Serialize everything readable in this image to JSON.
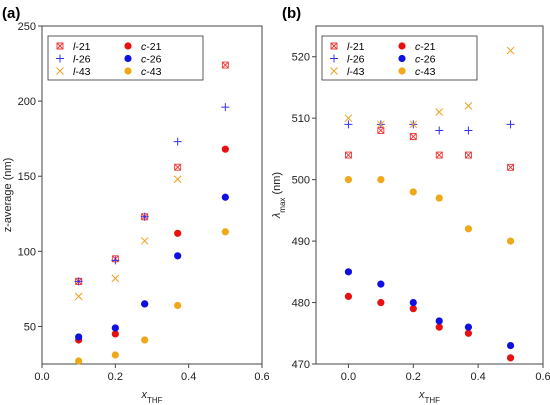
{
  "chart_data": [
    {
      "type": "scatter",
      "panel_label": "(a)",
      "ylabel": "z-average (nm)",
      "xlabel": {
        "base": "x",
        "sub": "THF"
      },
      "xlim": [
        -0.0,
        0.6
      ],
      "ylim": [
        25,
        250
      ],
      "xticks": [
        0.0,
        0.2,
        0.4,
        0.6
      ],
      "xtick_labels": [
        "0.0",
        "0.2",
        "0.4",
        "0.6"
      ],
      "yticks": [
        50,
        100,
        150,
        200,
        250
      ],
      "ytick_labels": [
        "50",
        "100",
        "150",
        "200",
        "250"
      ],
      "legend_position": "top-left",
      "series": [
        {
          "prefix": "l",
          "suffix": "-21",
          "marker": "square-x",
          "color": "#ee3333",
          "x": [
            0.1,
            0.2,
            0.28,
            0.37,
            0.5
          ],
          "y": [
            80,
            95,
            123,
            156,
            224
          ]
        },
        {
          "prefix": "l",
          "suffix": "-26",
          "marker": "plus",
          "color": "#3333ee",
          "x": [
            0.1,
            0.2,
            0.28,
            0.37,
            0.5
          ],
          "y": [
            80,
            94,
            123,
            173,
            196
          ]
        },
        {
          "prefix": "l",
          "suffix": "-43",
          "marker": "x",
          "color": "#f0a020",
          "x": [
            0.1,
            0.2,
            0.28,
            0.37
          ],
          "y": [
            70,
            82,
            107,
            148
          ]
        },
        {
          "prefix": "c",
          "suffix": "-21",
          "marker": "circle",
          "color": "#e81010",
          "x": [
            0.1,
            0.2,
            0.28,
            0.37,
            0.5
          ],
          "y": [
            41,
            45,
            65,
            112,
            168
          ]
        },
        {
          "prefix": "c",
          "suffix": "-26",
          "marker": "circle",
          "color": "#1010e0",
          "x": [
            0.1,
            0.2,
            0.28,
            0.37,
            0.5
          ],
          "y": [
            43,
            49,
            65,
            97,
            136
          ]
        },
        {
          "prefix": "c",
          "suffix": "-43",
          "marker": "circle",
          "color": "#f0a818",
          "x": [
            0.1,
            0.2,
            0.28,
            0.37,
            0.5
          ],
          "y": [
            27,
            31,
            41,
            64,
            113
          ]
        }
      ]
    },
    {
      "type": "scatter",
      "panel_label": "(b)",
      "ylabel": {
        "base": "λ",
        "sub": "max",
        "rest": " (nm)"
      },
      "xlabel": {
        "base": "x",
        "sub": "THF"
      },
      "xlim": [
        -0.1,
        0.6
      ],
      "ylim": [
        470,
        525
      ],
      "xticks": [
        0.0,
        0.2,
        0.4,
        0.6
      ],
      "xtick_labels": [
        "0.0",
        "0.2",
        "0.4",
        "0.6"
      ],
      "yticks": [
        470,
        480,
        490,
        500,
        510,
        520
      ],
      "ytick_labels": [
        "470",
        "480",
        "490",
        "500",
        "510",
        "520"
      ],
      "legend_position": "top-left",
      "series": [
        {
          "prefix": "l",
          "suffix": "-21",
          "marker": "square-x",
          "color": "#ee3333",
          "x": [
            0.0,
            0.1,
            0.2,
            0.28,
            0.37,
            0.5
          ],
          "y": [
            504,
            508,
            507,
            504,
            504,
            502
          ]
        },
        {
          "prefix": "l",
          "suffix": "-26",
          "marker": "plus",
          "color": "#3333ee",
          "x": [
            0.0,
            0.1,
            0.2,
            0.28,
            0.37,
            0.5
          ],
          "y": [
            509,
            509,
            509,
            508,
            508,
            509
          ]
        },
        {
          "prefix": "l",
          "suffix": "-43",
          "marker": "x",
          "color": "#f0a020",
          "x": [
            0.0,
            0.1,
            0.2,
            0.28,
            0.37,
            0.5
          ],
          "y": [
            510,
            509,
            509,
            511,
            512,
            521
          ]
        },
        {
          "prefix": "c",
          "suffix": "-21",
          "marker": "circle",
          "color": "#e81010",
          "x": [
            0.0,
            0.1,
            0.2,
            0.28,
            0.37,
            0.5
          ],
          "y": [
            481,
            480,
            479,
            476,
            475,
            471
          ]
        },
        {
          "prefix": "c",
          "suffix": "-26",
          "marker": "circle",
          "color": "#1010e0",
          "x": [
            0.0,
            0.1,
            0.2,
            0.28,
            0.37,
            0.5
          ],
          "y": [
            485,
            483,
            480,
            477,
            476,
            473
          ]
        },
        {
          "prefix": "c",
          "suffix": "-43",
          "marker": "circle",
          "color": "#f0a818",
          "x": [
            0.0,
            0.1,
            0.2,
            0.28,
            0.37,
            0.5
          ],
          "y": [
            500,
            500,
            498,
            497,
            492,
            490
          ]
        }
      ]
    }
  ]
}
